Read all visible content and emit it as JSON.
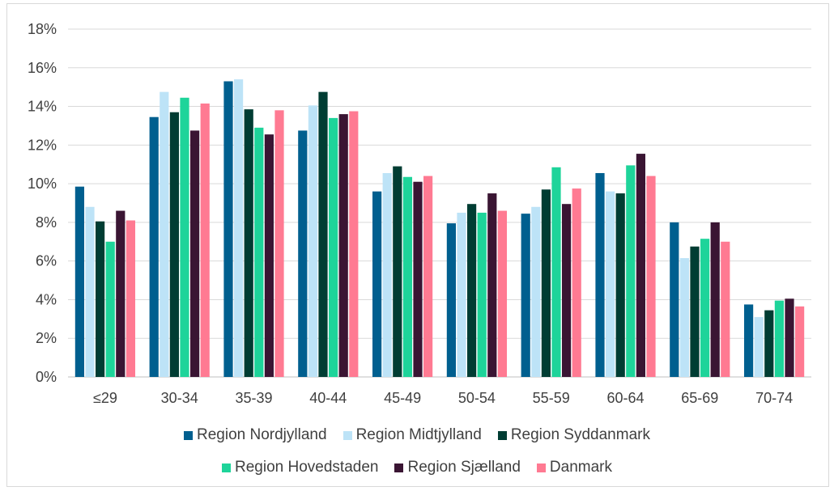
{
  "chart_data": {
    "type": "bar",
    "categories": [
      "≤29",
      "30-34",
      "35-39",
      "40-44",
      "45-49",
      "50-54",
      "55-59",
      "60-64",
      "65-69",
      "70-74"
    ],
    "series": [
      {
        "name": "Region Nordjylland",
        "color": "#005f8f",
        "values": [
          9.85,
          13.45,
          15.3,
          12.75,
          9.6,
          7.95,
          8.45,
          10.55,
          8.0,
          3.75
        ]
      },
      {
        "name": "Region Midtjylland",
        "color": "#bde3f7",
        "values": [
          8.8,
          14.75,
          15.4,
          14.05,
          10.55,
          8.5,
          8.8,
          9.6,
          6.15,
          3.1
        ]
      },
      {
        "name": "Region Syddanmark",
        "color": "#003d33",
        "values": [
          8.05,
          13.7,
          13.85,
          14.75,
          10.9,
          8.95,
          9.7,
          9.5,
          6.75,
          3.45
        ]
      },
      {
        "name": "Region Hovedstaden",
        "color": "#1ed49a",
        "values": [
          7.0,
          14.45,
          12.9,
          13.4,
          10.35,
          8.5,
          10.85,
          10.95,
          7.15,
          3.95
        ]
      },
      {
        "name": "Region Sjælland",
        "color": "#3a1533",
        "values": [
          8.6,
          12.75,
          12.55,
          13.6,
          10.1,
          9.5,
          8.95,
          11.55,
          8.0,
          4.05
        ]
      },
      {
        "name": "Danmark",
        "color": "#ff7a92",
        "values": [
          8.1,
          14.15,
          13.8,
          13.75,
          10.4,
          8.6,
          9.75,
          10.4,
          7.0,
          3.65
        ]
      }
    ],
    "y_ticks": [
      "0%",
      "2%",
      "4%",
      "6%",
      "8%",
      "10%",
      "12%",
      "14%",
      "16%",
      "18%"
    ],
    "ylim": [
      0,
      18
    ],
    "grid": true,
    "legend_position": "bottom",
    "title": "",
    "xlabel": "",
    "ylabel": ""
  }
}
